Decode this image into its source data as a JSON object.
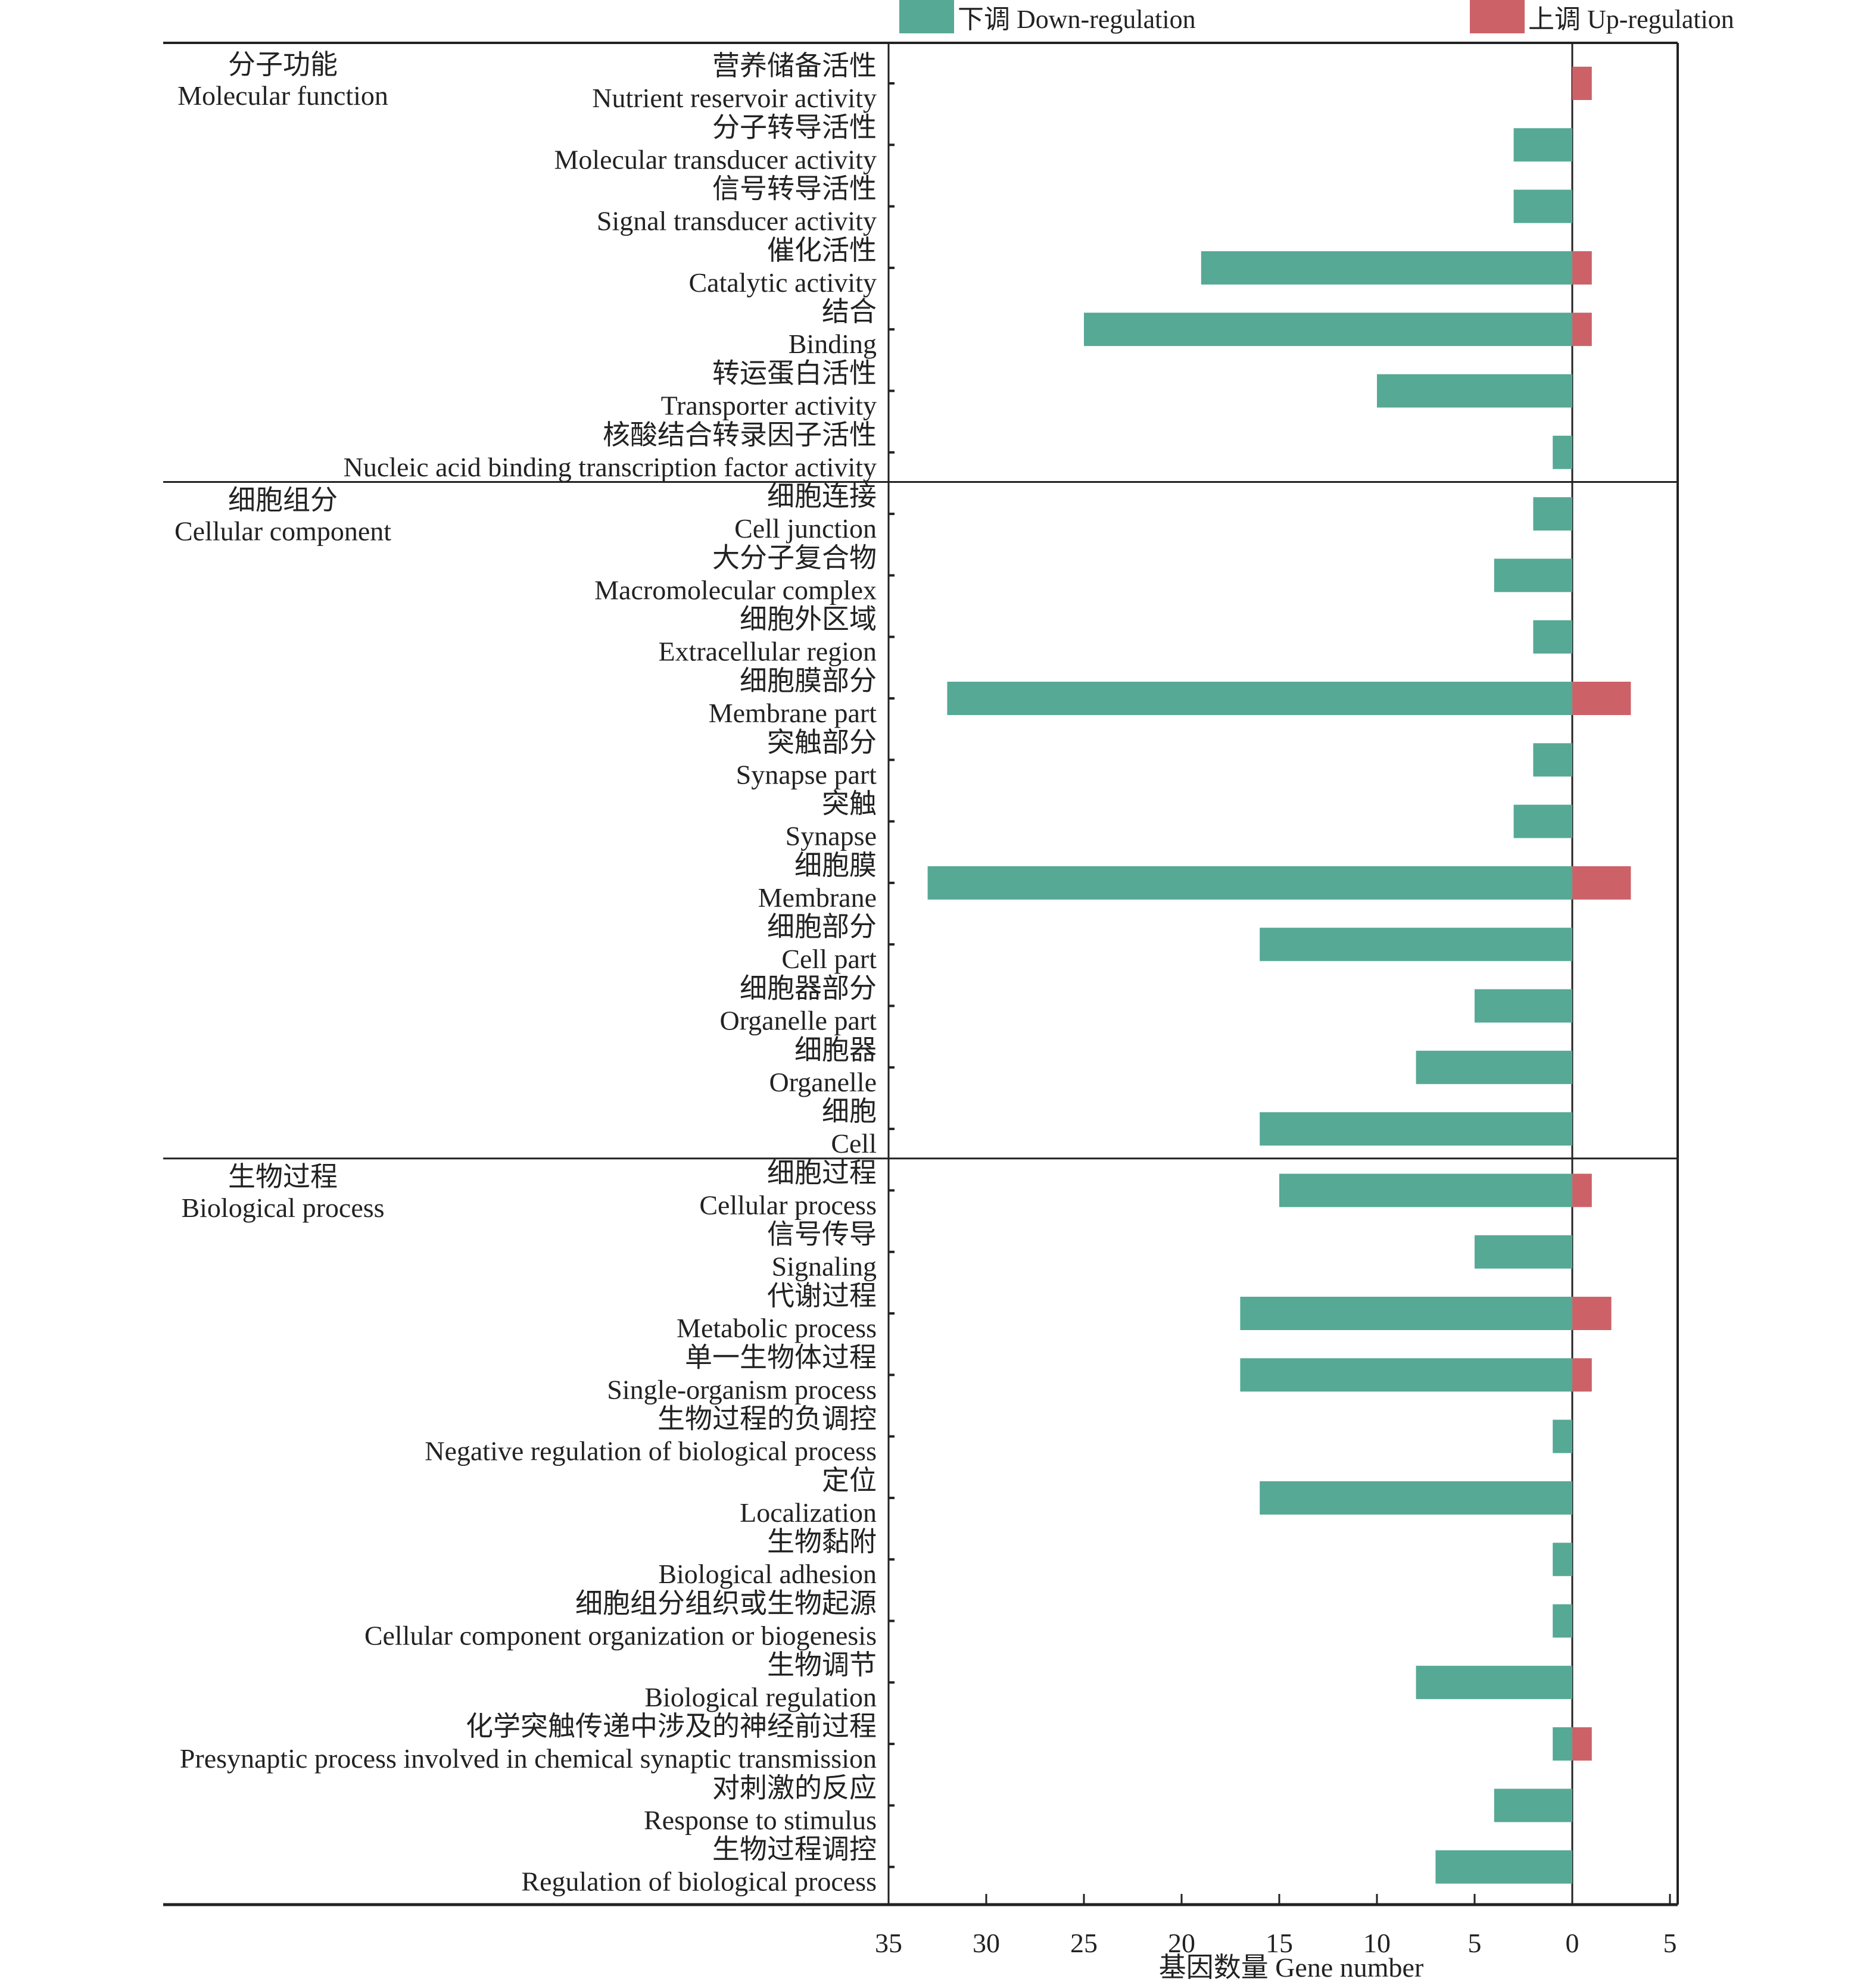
{
  "chart_data": {
    "type": "bar",
    "orientation": "horizontal",
    "xlabel": "基因数量 Gene number",
    "x_ticks": [
      "35",
      "30",
      "25",
      "20",
      "15",
      "10",
      "5",
      "0",
      "5"
    ],
    "xlim": [
      -35,
      5
    ],
    "grid": false,
    "legend_position": "top",
    "legend": [
      {
        "name": "下调 Down-regulation",
        "color": "#56a995"
      },
      {
        "name": "上调 Up-regulation",
        "color": "#cc6268"
      }
    ],
    "series": [
      {
        "name": "Down-regulation",
        "color": "#56a995",
        "direction": "left"
      },
      {
        "name": "Up-regulation",
        "color": "#cc6268",
        "direction": "right"
      }
    ],
    "groups": [
      {
        "name_cn": "分子功能",
        "name_en": "Molecular function",
        "categories": [
          {
            "cn": "营养储备活性",
            "en": "Nutrient reservoir activity",
            "down": 0,
            "up": 1
          },
          {
            "cn": "分子转导活性",
            "en": "Molecular transducer activity",
            "down": 3,
            "up": 0
          },
          {
            "cn": "信号转导活性",
            "en": "Signal transducer activity",
            "down": 3,
            "up": 0
          },
          {
            "cn": "催化活性",
            "en": "Catalytic activity",
            "down": 19,
            "up": 1
          },
          {
            "cn": "结合",
            "en": "Binding",
            "down": 25,
            "up": 1
          },
          {
            "cn": "转运蛋白活性",
            "en": "Transporter activity",
            "down": 10,
            "up": 0
          },
          {
            "cn": "核酸结合转录因子活性",
            "en": "Nucleic acid binding transcription factor activity",
            "down": 1,
            "up": 0
          }
        ]
      },
      {
        "name_cn": "细胞组分",
        "name_en": "Cellular component",
        "categories": [
          {
            "cn": "细胞连接",
            "en": "Cell junction",
            "down": 2,
            "up": 0
          },
          {
            "cn": "大分子复合物",
            "en": "Macromolecular complex",
            "down": 4,
            "up": 0
          },
          {
            "cn": "细胞外区域",
            "en": "Extracellular region",
            "down": 2,
            "up": 0
          },
          {
            "cn": "细胞膜部分",
            "en": "Membrane part",
            "down": 32,
            "up": 3
          },
          {
            "cn": "突触部分",
            "en": "Synapse part",
            "down": 2,
            "up": 0
          },
          {
            "cn": "突触",
            "en": "Synapse",
            "down": 3,
            "up": 0
          },
          {
            "cn": "细胞膜",
            "en": "Membrane",
            "down": 33,
            "up": 3
          },
          {
            "cn": "细胞部分",
            "en": "Cell part",
            "down": 16,
            "up": 0
          },
          {
            "cn": "细胞器部分",
            "en": "Organelle  part",
            "down": 5,
            "up": 0
          },
          {
            "cn": "细胞器",
            "en": "Organelle",
            "down": 8,
            "up": 0
          },
          {
            "cn": "细胞",
            "en": "Cell",
            "down": 16,
            "up": 0
          }
        ]
      },
      {
        "name_cn": "生物过程",
        "name_en": "Biological process",
        "categories": [
          {
            "cn": "细胞过程",
            "en": "Cellular process",
            "down": 15,
            "up": 1
          },
          {
            "cn": "信号传导",
            "en": "Signaling",
            "down": 5,
            "up": 0
          },
          {
            "cn": "代谢过程",
            "en": "Metabolic process",
            "down": 17,
            "up": 2
          },
          {
            "cn": "单一生物体过程",
            "en": "Single-organism process",
            "down": 17,
            "up": 1
          },
          {
            "cn": "生物过程的负调控",
            "en": "Negative regulation of biological process",
            "down": 1,
            "up": 0
          },
          {
            "cn": "定位",
            "en": "Localization",
            "down": 16,
            "up": 0
          },
          {
            "cn": "生物黏附",
            "en": "Biological adhesion",
            "down": 1,
            "up": 0
          },
          {
            "cn": "细胞组分组织或生物起源",
            "en": "Cellular component organization or biogenesis",
            "down": 1,
            "up": 0
          },
          {
            "cn": "生物调节",
            "en": "Biological regulation",
            "down": 8,
            "up": 0
          },
          {
            "cn": "化学突触传递中涉及的神经前过程",
            "en": "Presynaptic process involved in chemical synaptic transmission",
            "down": 1,
            "up": 1
          },
          {
            "cn": "对刺激的反应",
            "en": "Response to stimulus",
            "down": 4,
            "up": 0
          },
          {
            "cn": "生物过程调控",
            "en": "Regulation of  biological process",
            "down": 7,
            "up": 0
          }
        ]
      }
    ]
  }
}
